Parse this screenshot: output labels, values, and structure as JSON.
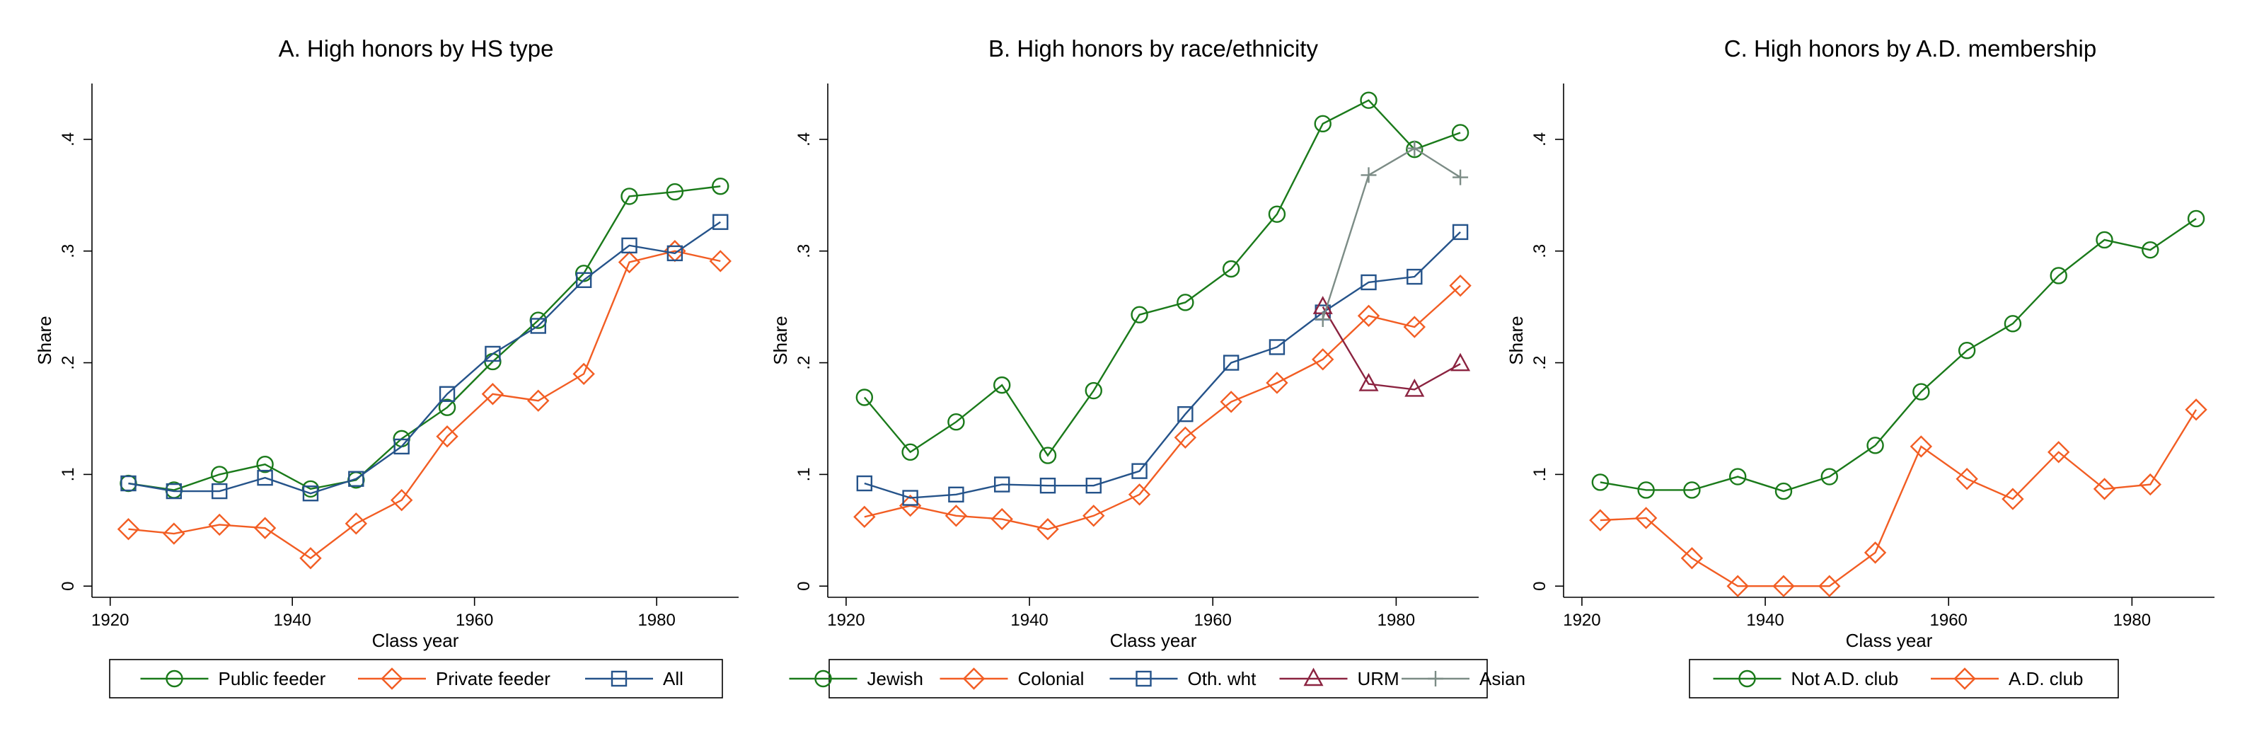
{
  "chart_data": [
    {
      "type": "line",
      "title": "A. High honors by HS type",
      "xlabel": "Class year",
      "ylabel": "Share",
      "x": [
        1922,
        1927,
        1932,
        1937,
        1942,
        1947,
        1952,
        1957,
        1962,
        1967,
        1972,
        1977,
        1982,
        1987
      ],
      "xticks": [
        1920,
        1940,
        1960,
        1980
      ],
      "xtick_labels": [
        "1920",
        "1940",
        "1960",
        "1980"
      ],
      "yticks": [
        0,
        0.1,
        0.2,
        0.3,
        0.4
      ],
      "ytick_labels": [
        "0",
        ".1",
        ".2",
        ".3",
        ".4"
      ],
      "xlim": [
        1918,
        1989
      ],
      "ylim": [
        -0.01,
        0.45
      ],
      "grid": false,
      "legend_position": "bottom",
      "series": [
        {
          "name": "Public feeder",
          "color": "#1a7a1a",
          "marker": "circle",
          "values": [
            0.092,
            0.086,
            0.1,
            0.109,
            0.087,
            0.095,
            0.132,
            0.16,
            0.201,
            0.238,
            0.28,
            0.349,
            0.353,
            0.358
          ]
        },
        {
          "name": "Private feeder",
          "color": "#f25d23",
          "marker": "diamond",
          "values": [
            0.051,
            0.047,
            0.055,
            0.052,
            0.025,
            0.056,
            0.077,
            0.134,
            0.172,
            0.166,
            0.19,
            0.29,
            0.3,
            0.291
          ]
        },
        {
          "name": "All",
          "color": "#25538a",
          "marker": "square",
          "values": [
            0.092,
            0.085,
            0.085,
            0.097,
            0.083,
            0.096,
            0.125,
            0.172,
            0.208,
            0.233,
            0.274,
            0.305,
            0.298,
            0.326
          ]
        }
      ]
    },
    {
      "type": "line",
      "title": "B. High honors by race/ethnicity",
      "xlabel": "Class year",
      "ylabel": "Share",
      "x": [
        1922,
        1927,
        1932,
        1937,
        1942,
        1947,
        1952,
        1957,
        1962,
        1967,
        1972,
        1977,
        1982,
        1987
      ],
      "xticks": [
        1920,
        1940,
        1960,
        1980
      ],
      "xtick_labels": [
        "1920",
        "1940",
        "1960",
        "1980"
      ],
      "yticks": [
        0,
        0.1,
        0.2,
        0.3,
        0.4
      ],
      "ytick_labels": [
        "0",
        ".1",
        ".2",
        ".3",
        ".4"
      ],
      "xlim": [
        1918,
        1989
      ],
      "ylim": [
        -0.01,
        0.45
      ],
      "grid": false,
      "legend_position": "bottom",
      "series": [
        {
          "name": "Jewish",
          "color": "#1a7a1a",
          "marker": "circle",
          "values": [
            0.169,
            0.12,
            0.147,
            0.18,
            0.117,
            0.175,
            0.243,
            0.254,
            0.284,
            0.333,
            0.414,
            0.435,
            0.391,
            0.406
          ]
        },
        {
          "name": "Colonial",
          "color": "#f25d23",
          "marker": "diamond",
          "values": [
            0.062,
            0.072,
            0.063,
            0.06,
            0.051,
            0.063,
            0.082,
            0.133,
            0.165,
            0.182,
            0.203,
            0.242,
            0.232,
            0.269
          ]
        },
        {
          "name": "Oth. wht",
          "color": "#25538a",
          "marker": "square",
          "values": [
            0.092,
            0.079,
            0.082,
            0.091,
            0.09,
            0.09,
            0.103,
            0.154,
            0.2,
            0.214,
            0.245,
            0.272,
            0.277,
            0.317
          ]
        },
        {
          "name": "URM",
          "color": "#8b2340",
          "marker": "triangle",
          "values": [
            null,
            null,
            null,
            null,
            null,
            null,
            null,
            null,
            null,
            null,
            0.25,
            0.181,
            0.176,
            0.199
          ]
        },
        {
          "name": "Asian",
          "color": "#7c8c86",
          "marker": "plus",
          "values": [
            null,
            null,
            null,
            null,
            null,
            null,
            null,
            null,
            null,
            null,
            0.239,
            0.368,
            0.392,
            0.366
          ]
        }
      ]
    },
    {
      "type": "line",
      "title": "C. High honors by A.D. membership",
      "xlabel": "Class year",
      "ylabel": "Share",
      "x": [
        1922,
        1927,
        1932,
        1937,
        1942,
        1947,
        1952,
        1957,
        1962,
        1967,
        1972,
        1977,
        1982,
        1987
      ],
      "xticks": [
        1920,
        1940,
        1960,
        1980
      ],
      "xtick_labels": [
        "1920",
        "1940",
        "1960",
        "1980"
      ],
      "yticks": [
        0,
        0.1,
        0.2,
        0.3,
        0.4
      ],
      "ytick_labels": [
        "0",
        ".1",
        ".2",
        ".3",
        ".4"
      ],
      "xlim": [
        1918,
        1989
      ],
      "ylim": [
        -0.01,
        0.45
      ],
      "grid": false,
      "legend_position": "bottom",
      "series": [
        {
          "name": "Not A.D. club",
          "color": "#1a7a1a",
          "marker": "circle",
          "values": [
            0.093,
            0.086,
            0.086,
            0.098,
            0.085,
            0.098,
            0.126,
            0.174,
            0.211,
            0.235,
            0.278,
            0.31,
            0.301,
            0.329
          ]
        },
        {
          "name": "A.D. club",
          "color": "#f25d23",
          "marker": "diamond",
          "values": [
            0.059,
            0.061,
            0.025,
            0.0,
            0.0,
            0.0,
            0.03,
            0.125,
            0.096,
            0.078,
            0.12,
            0.087,
            0.091,
            0.158
          ]
        }
      ]
    }
  ]
}
